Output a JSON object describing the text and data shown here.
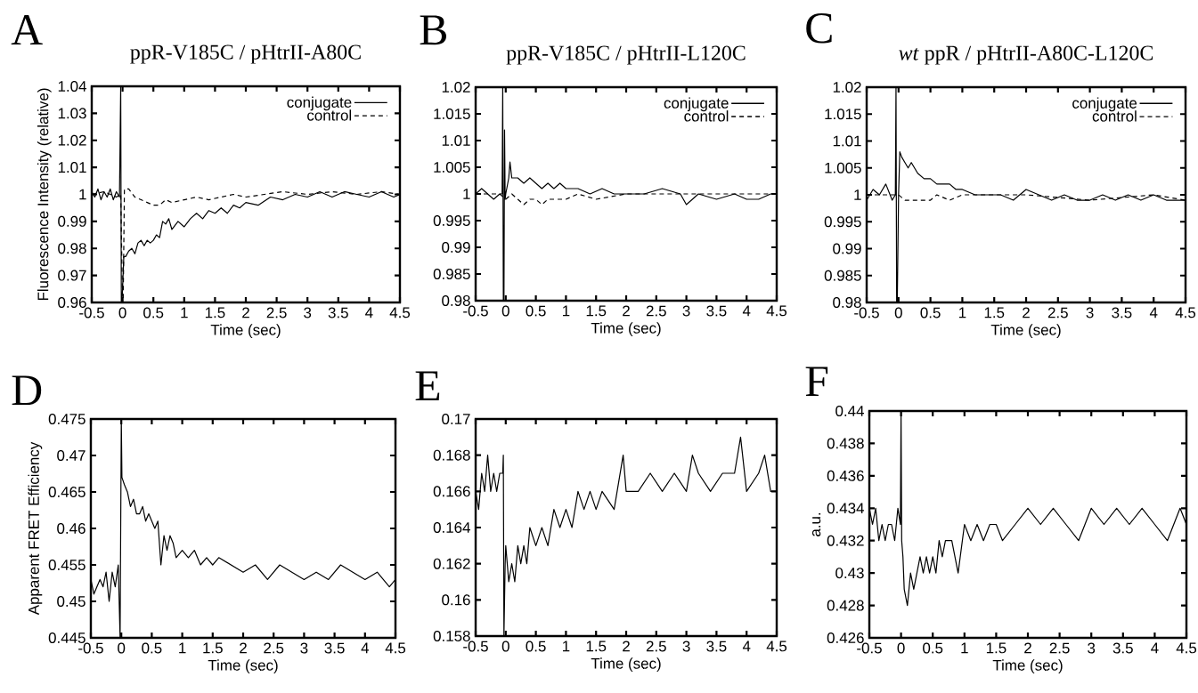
{
  "chart_data": [
    {
      "type": "line",
      "title": "ppR-V185C / pHtrII-A80C",
      "annotations": [
        "A"
      ],
      "xlabel": "Time (sec)",
      "ylabel": "Fluorescence Intensity (relative)",
      "xlim": [
        -0.5,
        4.5
      ],
      "ylim": [
        0.96,
        1.04
      ],
      "xticks": [
        -0.5,
        0,
        0.5,
        1,
        1.5,
        2,
        2.5,
        3,
        3.5,
        4,
        4.5
      ],
      "yticks": [
        0.96,
        0.97,
        0.98,
        0.99,
        1,
        1.01,
        1.02,
        1.03,
        1.04
      ],
      "legend": "top right",
      "series": [
        {
          "name": "conjugate",
          "color": "#000000",
          "line_style": "solid",
          "x": [
            -0.5,
            -0.45,
            -0.4,
            -0.35,
            -0.3,
            -0.25,
            -0.2,
            -0.15,
            -0.1,
            -0.05,
            -0.03,
            -0.02,
            -0.01,
            0.0,
            0.02,
            0.05,
            0.1,
            0.15,
            0.2,
            0.25,
            0.3,
            0.35,
            0.4,
            0.45,
            0.5,
            0.55,
            0.6,
            0.65,
            0.7,
            0.75,
            0.8,
            0.9,
            1.0,
            1.1,
            1.2,
            1.3,
            1.4,
            1.5,
            1.6,
            1.7,
            1.8,
            1.9,
            2.0,
            2.2,
            2.4,
            2.6,
            2.8,
            3.0,
            3.2,
            3.4,
            3.6,
            3.8,
            4.0,
            4.2,
            4.4,
            4.5
          ],
          "values": [
            1.001,
            0.999,
            1.002,
            0.998,
            1.001,
            0.999,
            1.002,
            0.998,
            1.001,
            0.999,
            1.04,
            0.96,
            0.96,
            0.965,
            0.977,
            0.977,
            0.979,
            0.98,
            0.978,
            0.982,
            0.983,
            0.981,
            0.983,
            0.982,
            0.983,
            0.985,
            0.984,
            0.99,
            0.989,
            0.991,
            0.987,
            0.99,
            0.988,
            0.991,
            0.993,
            0.991,
            0.994,
            0.993,
            0.995,
            0.993,
            0.996,
            0.995,
            0.997,
            0.996,
            0.999,
            0.998,
            1.0,
            0.999,
            1.001,
            0.999,
            1.001,
            1.0,
            0.999,
            1.001,
            0.999,
            1.0
          ]
        },
        {
          "name": "control",
          "color": "#000000",
          "line_style": "dashed",
          "x": [
            -0.5,
            -0.3,
            -0.1,
            -0.03,
            0.0,
            0.01,
            0.03,
            0.1,
            0.2,
            0.3,
            0.4,
            0.5,
            0.6,
            0.7,
            0.8,
            1.0,
            1.2,
            1.4,
            1.6,
            1.8,
            2.0,
            2.3,
            2.6,
            3.0,
            3.4,
            3.8,
            4.2,
            4.5
          ],
          "values": [
            1.0,
            1.001,
            0.999,
            1.0,
            0.96,
            0.96,
            1.002,
            1.002,
            0.999,
            0.998,
            0.997,
            0.996,
            0.996,
            0.998,
            0.997,
            0.998,
            0.999,
            0.998,
            0.999,
            1.0,
            0.999,
            1.0,
            1.001,
            1.0,
            1.001,
            1.0,
            1.001,
            1.0
          ]
        }
      ]
    },
    {
      "type": "line",
      "title": "ppR-V185C / pHtrII-L120C",
      "annotations": [
        "B"
      ],
      "xlabel": "Time (sec)",
      "xlim": [
        -0.5,
        4.5
      ],
      "ylim": [
        0.98,
        1.02
      ],
      "xticks": [
        -0.5,
        0,
        0.5,
        1,
        1.5,
        2,
        2.5,
        3,
        3.5,
        4,
        4.5
      ],
      "yticks": [
        0.98,
        0.985,
        0.99,
        0.995,
        1,
        1.005,
        1.01,
        1.015,
        1.02
      ],
      "legend": "top right",
      "series": [
        {
          "name": "conjugate",
          "color": "#000000",
          "line_style": "solid",
          "x": [
            -0.5,
            -0.4,
            -0.3,
            -0.2,
            -0.1,
            -0.06,
            -0.05,
            -0.04,
            -0.03,
            -0.02,
            -0.01,
            0.0,
            0.05,
            0.07,
            0.1,
            0.2,
            0.3,
            0.4,
            0.5,
            0.6,
            0.7,
            0.8,
            0.9,
            1.0,
            1.2,
            1.4,
            1.6,
            1.8,
            2.0,
            2.3,
            2.6,
            2.9,
            3.0,
            3.2,
            3.5,
            3.8,
            4.0,
            4.2,
            4.4,
            4.5
          ],
          "values": [
            1.0,
            1.001,
            1.0,
            0.999,
            1.0,
            1.0,
            1.02,
            0.98,
            0.98,
            1.012,
            0.999,
            1.0,
            1.003,
            1.006,
            1.003,
            1.003,
            1.002,
            1.003,
            1.002,
            1.001,
            1.002,
            1.001,
            1.002,
            1.001,
            1.001,
            1.0,
            1.001,
            1.0,
            1.0,
            1.0,
            1.001,
            1.0,
            0.998,
            1.0,
            0.999,
            1.0,
            0.999,
            0.999,
            1.0,
            1.0
          ]
        },
        {
          "name": "control",
          "color": "#000000",
          "line_style": "dashed",
          "x": [
            -0.5,
            -0.3,
            -0.1,
            0.0,
            0.1,
            0.2,
            0.3,
            0.4,
            0.5,
            0.6,
            0.7,
            0.8,
            1.0,
            1.2,
            1.5,
            2.0,
            2.5,
            3.0,
            3.5,
            4.0,
            4.5
          ],
          "values": [
            1.0,
            1.0,
            1.0,
            0.999,
            1.0,
            0.999,
            0.998,
            0.999,
            0.999,
            0.998,
            0.999,
            0.999,
            0.999,
            1.0,
            0.999,
            1.0,
            1.0,
            1.0,
            1.0,
            1.0,
            1.0
          ]
        }
      ]
    },
    {
      "type": "line",
      "title": "*wt* ppR / pHtrII-A80C-L120C",
      "annotations": [
        "C"
      ],
      "xlabel": "Time (sec)",
      "xlim": [
        -0.5,
        4.5
      ],
      "ylim": [
        0.98,
        1.02
      ],
      "xticks": [
        -0.5,
        0,
        0.5,
        1,
        1.5,
        2,
        2.5,
        3,
        3.5,
        4,
        4.5
      ],
      "yticks": [
        0.98,
        0.985,
        0.99,
        0.995,
        1,
        1.005,
        1.01,
        1.015,
        1.02
      ],
      "legend": "top right",
      "series": [
        {
          "name": "conjugate",
          "color": "#000000",
          "line_style": "solid",
          "x": [
            -0.5,
            -0.4,
            -0.3,
            -0.2,
            -0.1,
            -0.05,
            -0.04,
            -0.03,
            -0.02,
            0.0,
            0.02,
            0.05,
            0.1,
            0.15,
            0.2,
            0.3,
            0.4,
            0.5,
            0.6,
            0.7,
            0.8,
            0.9,
            1.0,
            1.2,
            1.4,
            1.6,
            1.8,
            2.0,
            2.2,
            2.4,
            2.6,
            2.8,
            3.0,
            3.2,
            3.4,
            3.6,
            3.8,
            4.0,
            4.2,
            4.4,
            4.5
          ],
          "values": [
            0.999,
            1.001,
            1.0,
            1.002,
            0.999,
            1.0,
            1.02,
            0.98,
            0.98,
            1.0,
            1.008,
            1.007,
            1.006,
            1.005,
            1.006,
            1.004,
            1.003,
            1.003,
            1.002,
            1.002,
            1.002,
            1.001,
            1.001,
            1.0,
            1.0,
            1.0,
            0.999,
            1.001,
            1.0,
            0.999,
            1.0,
            0.999,
            0.999,
            1.0,
            0.999,
            1.0,
            0.999,
            1.0,
            0.999,
            0.999,
            0.999
          ]
        },
        {
          "name": "control",
          "color": "#000000",
          "line_style": "dashed",
          "x": [
            -0.5,
            -0.1,
            0.0,
            0.1,
            0.2,
            0.3,
            0.4,
            0.5,
            0.6,
            0.8,
            1.0,
            1.5,
            2.0,
            3.0,
            4.0,
            4.5
          ],
          "values": [
            1.0,
            1.0,
            1.0,
            0.999,
            0.999,
            0.999,
            0.999,
            0.999,
            1.0,
            0.999,
            1.0,
            1.0,
            1.0,
            0.999,
            1.0,
            0.999
          ]
        }
      ]
    },
    {
      "type": "line",
      "annotations": [
        "D"
      ],
      "xlabel": "Time (sec)",
      "ylabel": "Apparent FRET Efficiency",
      "xlim": [
        -0.5,
        4.5
      ],
      "ylim": [
        0.445,
        0.475
      ],
      "xticks": [
        -0.5,
        0,
        0.5,
        1,
        1.5,
        2,
        2.5,
        3,
        3.5,
        4,
        4.5
      ],
      "yticks": [
        0.445,
        0.45,
        0.455,
        0.46,
        0.465,
        0.47,
        0.475
      ],
      "series": [
        {
          "color": "#000000",
          "line_style": "solid",
          "x": [
            -0.5,
            -0.45,
            -0.4,
            -0.35,
            -0.3,
            -0.25,
            -0.2,
            -0.15,
            -0.1,
            -0.05,
            -0.02,
            0.0,
            0.01,
            0.05,
            0.1,
            0.15,
            0.2,
            0.25,
            0.3,
            0.35,
            0.4,
            0.45,
            0.5,
            0.55,
            0.6,
            0.65,
            0.7,
            0.75,
            0.8,
            0.85,
            0.9,
            1.0,
            1.1,
            1.2,
            1.3,
            1.4,
            1.5,
            1.6,
            1.8,
            2.0,
            2.2,
            2.4,
            2.6,
            2.8,
            3.0,
            3.2,
            3.4,
            3.6,
            3.8,
            4.0,
            4.2,
            4.4,
            4.5
          ],
          "values": [
            0.453,
            0.451,
            0.452,
            0.453,
            0.452,
            0.454,
            0.45,
            0.454,
            0.452,
            0.455,
            0.445,
            0.475,
            0.467,
            0.466,
            0.465,
            0.463,
            0.464,
            0.462,
            0.462,
            0.463,
            0.461,
            0.462,
            0.461,
            0.46,
            0.461,
            0.455,
            0.459,
            0.457,
            0.459,
            0.458,
            0.456,
            0.457,
            0.456,
            0.457,
            0.455,
            0.456,
            0.455,
            0.456,
            0.455,
            0.454,
            0.455,
            0.453,
            0.455,
            0.454,
            0.453,
            0.454,
            0.453,
            0.455,
            0.454,
            0.453,
            0.454,
            0.452,
            0.453
          ]
        }
      ]
    },
    {
      "type": "line",
      "annotations": [
        "E"
      ],
      "xlabel": "Time (sec)",
      "xlim": [
        -0.5,
        4.5
      ],
      "ylim": [
        0.158,
        0.17
      ],
      "xticks": [
        -0.5,
        0,
        0.5,
        1,
        1.5,
        2,
        2.5,
        3,
        3.5,
        4,
        4.5
      ],
      "yticks": [
        0.158,
        0.16,
        0.162,
        0.164,
        0.166,
        0.168,
        0.17
      ],
      "series": [
        {
          "color": "#000000",
          "line_style": "solid",
          "x": [
            -0.5,
            -0.45,
            -0.4,
            -0.35,
            -0.3,
            -0.25,
            -0.2,
            -0.15,
            -0.1,
            -0.05,
            -0.04,
            -0.03,
            -0.01,
            0.0,
            0.05,
            0.1,
            0.15,
            0.2,
            0.25,
            0.3,
            0.35,
            0.4,
            0.5,
            0.6,
            0.7,
            0.8,
            0.9,
            1.0,
            1.1,
            1.2,
            1.3,
            1.4,
            1.5,
            1.6,
            1.8,
            1.95,
            2.0,
            2.2,
            2.4,
            2.6,
            2.8,
            3.0,
            3.1,
            3.2,
            3.4,
            3.6,
            3.8,
            3.9,
            4.0,
            4.2,
            4.3,
            4.4,
            4.5
          ],
          "values": [
            0.166,
            0.165,
            0.167,
            0.166,
            0.168,
            0.166,
            0.167,
            0.166,
            0.167,
            0.167,
            0.168,
            0.158,
            0.162,
            0.163,
            0.161,
            0.162,
            0.161,
            0.163,
            0.162,
            0.163,
            0.162,
            0.164,
            0.163,
            0.164,
            0.163,
            0.165,
            0.164,
            0.165,
            0.164,
            0.166,
            0.165,
            0.166,
            0.165,
            0.166,
            0.165,
            0.168,
            0.166,
            0.166,
            0.167,
            0.166,
            0.167,
            0.166,
            0.168,
            0.167,
            0.166,
            0.167,
            0.167,
            0.169,
            0.166,
            0.167,
            0.168,
            0.166,
            0.166
          ]
        }
      ]
    },
    {
      "type": "line",
      "annotations": [
        "F"
      ],
      "xlabel": "Time (sec)",
      "ylabel": "a.u.",
      "xlim": [
        -0.5,
        4.5
      ],
      "ylim": [
        0.426,
        0.44
      ],
      "xticks": [
        -0.5,
        0,
        0.5,
        1,
        1.5,
        2,
        2.5,
        3,
        3.5,
        4,
        4.5
      ],
      "yticks": [
        0.426,
        0.428,
        0.43,
        0.432,
        0.434,
        0.436,
        0.438,
        0.44
      ],
      "series": [
        {
          "color": "#000000",
          "line_style": "solid",
          "x": [
            -0.5,
            -0.45,
            -0.4,
            -0.35,
            -0.3,
            -0.25,
            -0.2,
            -0.15,
            -0.1,
            -0.05,
            -0.01,
            0.0,
            0.01,
            0.03,
            0.05,
            0.1,
            0.15,
            0.2,
            0.25,
            0.3,
            0.35,
            0.4,
            0.45,
            0.5,
            0.55,
            0.6,
            0.65,
            0.7,
            0.8,
            0.9,
            1.0,
            1.1,
            1.2,
            1.3,
            1.4,
            1.5,
            1.6,
            1.8,
            2.0,
            2.2,
            2.4,
            2.6,
            2.8,
            3.0,
            3.2,
            3.4,
            3.6,
            3.8,
            4.0,
            4.2,
            4.4,
            4.5
          ],
          "values": [
            0.434,
            0.433,
            0.434,
            0.432,
            0.433,
            0.432,
            0.433,
            0.433,
            0.432,
            0.434,
            0.433,
            0.44,
            0.432,
            0.431,
            0.429,
            0.428,
            0.43,
            0.429,
            0.43,
            0.431,
            0.43,
            0.431,
            0.43,
            0.431,
            0.43,
            0.432,
            0.431,
            0.432,
            0.432,
            0.43,
            0.433,
            0.432,
            0.433,
            0.432,
            0.433,
            0.433,
            0.432,
            0.433,
            0.434,
            0.433,
            0.434,
            0.433,
            0.432,
            0.434,
            0.433,
            0.434,
            0.433,
            0.434,
            0.433,
            0.432,
            0.434,
            0.433
          ]
        }
      ]
    }
  ]
}
